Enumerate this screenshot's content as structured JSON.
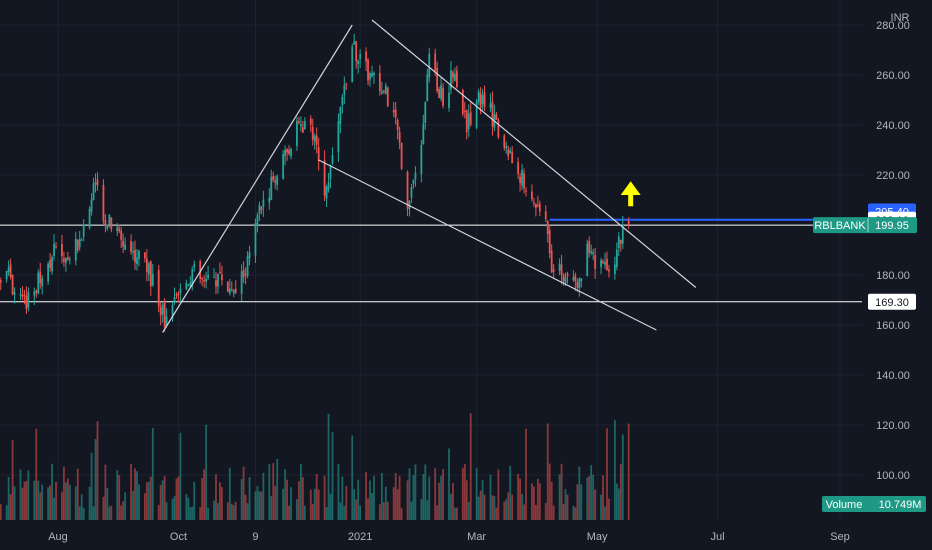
{
  "currency_label": "INR",
  "colors": {
    "background": "#131722",
    "grid": "#1e222d",
    "up": "#26a69a",
    "down": "#ef5350",
    "trendline": "#d1d4dc",
    "hline": "#ffffff",
    "blue_line": "#2962ff",
    "arrow": "#ffff00",
    "axis_text": "#b2b5be"
  },
  "chart_data": {
    "type": "candlestick",
    "symbol": "RBLBANK",
    "y_axis": {
      "range": [
        82,
        290
      ],
      "ticks": [
        "280.00",
        "260.00",
        "240.00",
        "220.00",
        "180.00",
        "160.00",
        "140.00",
        "120.00",
        "100.00"
      ]
    },
    "x_axis": {
      "ticks": [
        {
          "label": "Aug",
          "date": "2020-08-01"
        },
        {
          "label": "Oct",
          "date": "2020-10-01"
        },
        {
          "label": "9",
          "date": "2020-11-09"
        },
        {
          "label": "2021",
          "date": "2021-01-01"
        },
        {
          "label": "Mar",
          "date": "2021-03-01"
        },
        {
          "label": "May",
          "date": "2021-05-01"
        },
        {
          "label": "Jul",
          "date": "2021-07-01"
        },
        {
          "label": "Sep",
          "date": "2021-09-01"
        }
      ]
    },
    "price_tags": [
      {
        "label": "205.40",
        "value": 205.4,
        "style": "blue"
      },
      {
        "label": "202.10",
        "value": 202.1,
        "style": "white"
      },
      {
        "label": "199.95",
        "value": 199.95,
        "style": "green",
        "symbol": "RBLBANK"
      },
      {
        "label": "169.30",
        "value": 169.3,
        "style": "white"
      }
    ],
    "volume_badge": {
      "name": "Volume",
      "value": "10.749M"
    },
    "horizontal_lines": [
      {
        "value": 199.95,
        "color": "hline",
        "start": "2020-06-10"
      },
      {
        "value": 169.3,
        "color": "hline",
        "start": "2020-06-10"
      },
      {
        "value": 202.1,
        "color": "blue_line",
        "start": "2021-04-07"
      }
    ],
    "trendlines": [
      {
        "from": {
          "date": "2020-09-23",
          "value": 157
        },
        "to": {
          "date": "2020-12-28",
          "value": 280
        }
      },
      {
        "from": {
          "date": "2021-01-07",
          "value": 282
        },
        "to": {
          "date": "2021-06-20",
          "value": 175
        }
      },
      {
        "from": {
          "date": "2020-12-11",
          "value": 226
        },
        "to": {
          "date": "2021-05-31",
          "value": 158
        }
      }
    ],
    "annotation_arrow": {
      "date": "2021-05-18",
      "value_base": 207.5,
      "value_tip": 217.5
    },
    "series_anchors": [
      [
        "2020-06-10",
        196
      ],
      [
        "2020-06-18",
        185
      ],
      [
        "2020-06-26",
        176
      ],
      [
        "2020-07-06",
        181
      ],
      [
        "2020-07-14",
        168
      ],
      [
        "2020-07-22",
        177
      ],
      [
        "2020-07-30",
        190
      ],
      [
        "2020-08-07",
        188
      ],
      [
        "2020-08-14",
        198
      ],
      [
        "2020-08-20",
        216
      ],
      [
        "2020-08-25",
        203
      ],
      [
        "2020-08-31",
        197
      ],
      [
        "2020-09-07",
        190
      ],
      [
        "2020-09-14",
        186
      ],
      [
        "2020-09-21",
        170
      ],
      [
        "2020-09-25",
        160
      ],
      [
        "2020-10-01",
        172
      ],
      [
        "2020-10-08",
        182
      ],
      [
        "2020-10-15",
        176
      ],
      [
        "2020-10-22",
        180
      ],
      [
        "2020-10-29",
        172
      ],
      [
        "2020-11-05",
        185
      ],
      [
        "2020-11-11",
        205
      ],
      [
        "2020-11-18",
        218
      ],
      [
        "2020-11-25",
        228
      ],
      [
        "2020-12-01",
        240
      ],
      [
        "2020-12-07",
        238
      ],
      [
        "2020-12-11",
        226
      ],
      [
        "2020-12-15",
        212
      ],
      [
        "2020-12-18",
        228
      ],
      [
        "2020-12-23",
        250
      ],
      [
        "2020-12-28",
        272
      ],
      [
        "2021-01-04",
        262
      ],
      [
        "2021-01-11",
        255
      ],
      [
        "2021-01-18",
        248
      ],
      [
        "2021-01-25",
        210
      ],
      [
        "2021-02-01",
        230
      ],
      [
        "2021-02-05",
        265
      ],
      [
        "2021-02-12",
        250
      ],
      [
        "2021-02-18",
        262
      ],
      [
        "2021-02-24",
        240
      ],
      [
        "2021-03-02",
        252
      ],
      [
        "2021-03-08",
        245
      ],
      [
        "2021-03-15",
        232
      ],
      [
        "2021-03-22",
        222
      ],
      [
        "2021-03-29",
        210
      ],
      [
        "2021-04-05",
        206
      ],
      [
        "2021-04-08",
        185
      ],
      [
        "2021-04-15",
        180
      ],
      [
        "2021-04-21",
        173
      ],
      [
        "2021-04-26",
        190
      ],
      [
        "2021-05-03",
        182
      ],
      [
        "2021-05-10",
        188
      ],
      [
        "2021-05-14",
        199
      ],
      [
        "2021-05-17",
        199.95
      ]
    ]
  }
}
